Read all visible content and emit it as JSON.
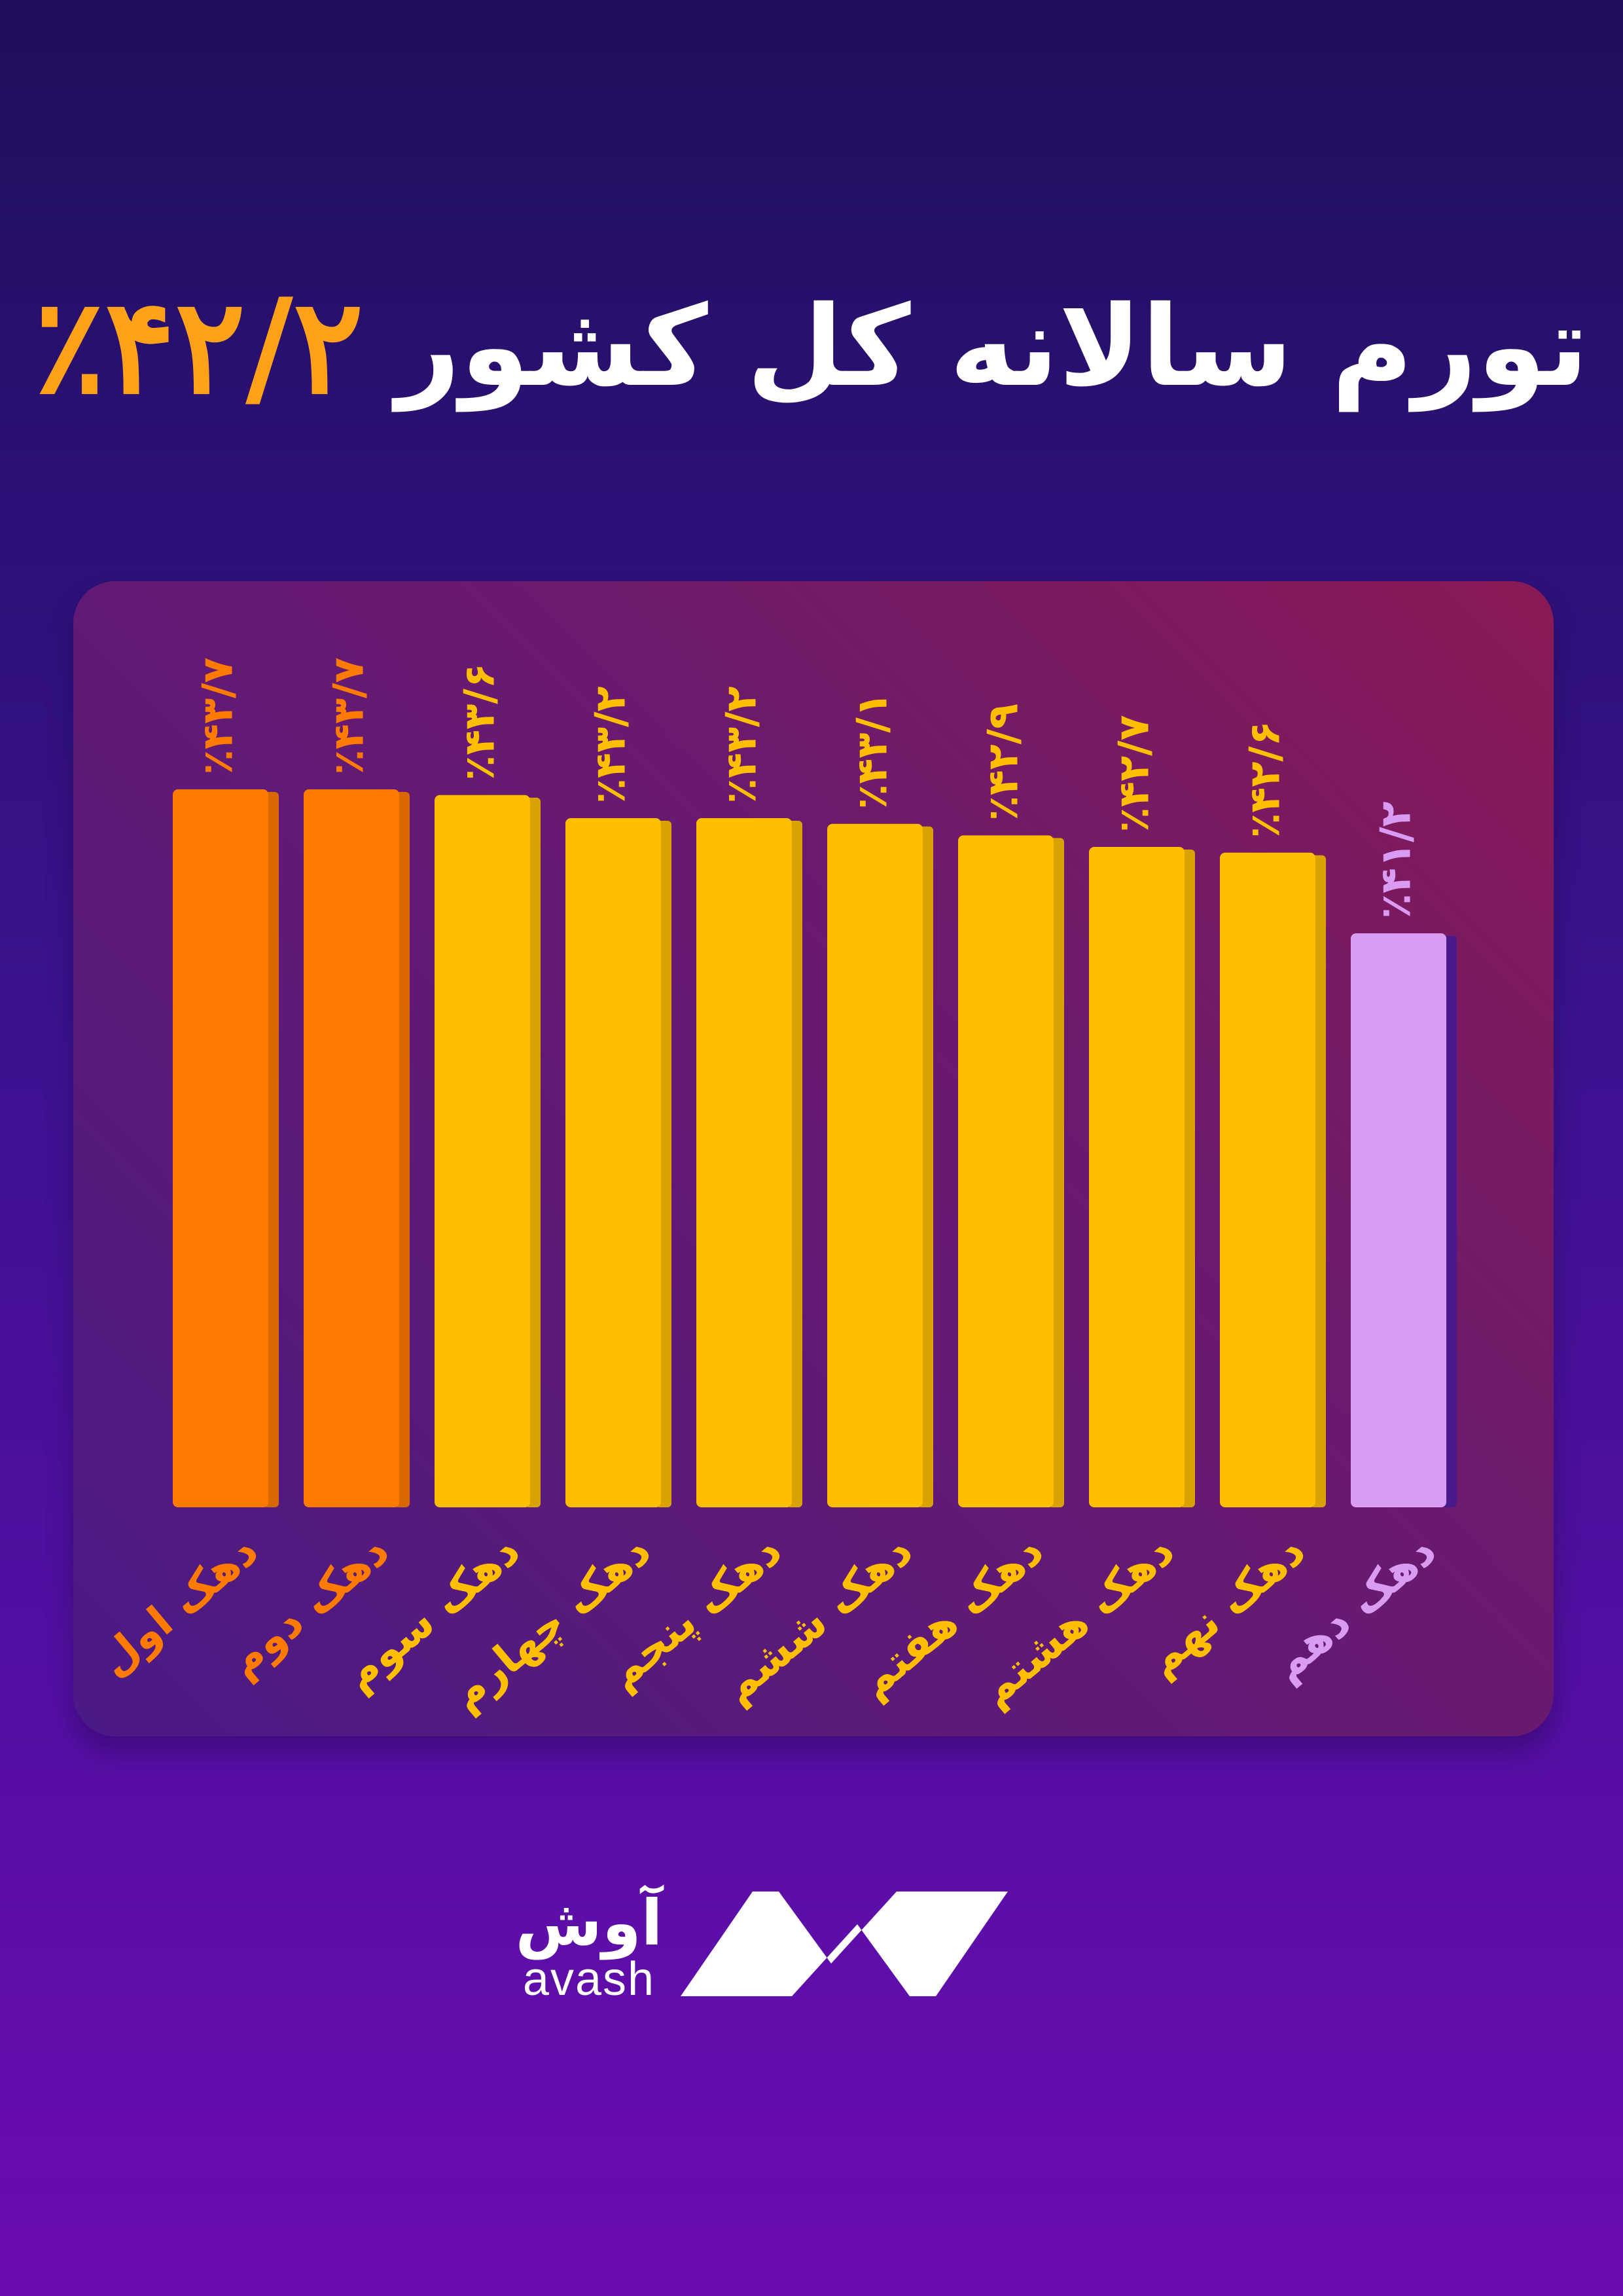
{
  "header": {
    "title_text": "تورم سالانه کل کشور",
    "title_value": "٪۴۲/۲"
  },
  "logo": {
    "name_fa": "آوش",
    "name_en": "avash",
    "icon": "avash-logo-icon"
  },
  "colors": {
    "deciles_1_2": "#ff7a00",
    "deciles_3_9": "#ffbf00",
    "decile_10": "#da9cf2",
    "accent_title": "#ffa21a"
  },
  "chart_data": {
    "type": "bar",
    "title": "تورم سالانه کل کشور",
    "categories": [
      "دهک اول",
      "دهک دوم",
      "دهک سوم",
      "دهک چهارم",
      "دهک پنجم",
      "دهک ششم",
      "دهک هفتم",
      "دهک هشتم",
      "دهک نهم",
      "دهک دهم"
    ],
    "values": [
      43.7,
      43.7,
      43.6,
      43.2,
      43.2,
      43.1,
      42.9,
      42.7,
      42.6,
      41.2
    ],
    "data_labels": [
      "٪۴۳/۷",
      "٪۴۳/۷",
      "٪۴۳/۶",
      "٪۴۳/۲",
      "٪۴۳/۲",
      "٪۴۳/۱",
      "٪۴۲/۹",
      "٪۴۲/۷",
      "٪۴۲/۶",
      "٪۴۱/۲"
    ],
    "bar_colors": [
      "#ff7a00",
      "#ff7a00",
      "#ffbf00",
      "#ffbf00",
      "#ffbf00",
      "#ffbf00",
      "#ffbf00",
      "#ffbf00",
      "#ffbf00",
      "#da9cf2"
    ],
    "label_colors": [
      "#ff7a00",
      "#ff7a00",
      "#ffbf00",
      "#ffbf00",
      "#ffbf00",
      "#ffbf00",
      "#ffbf00",
      "#ffbf00",
      "#ffbf00",
      "#da9cf2"
    ],
    "xlabel": "",
    "ylabel": "",
    "grid": false,
    "legend": "none"
  }
}
